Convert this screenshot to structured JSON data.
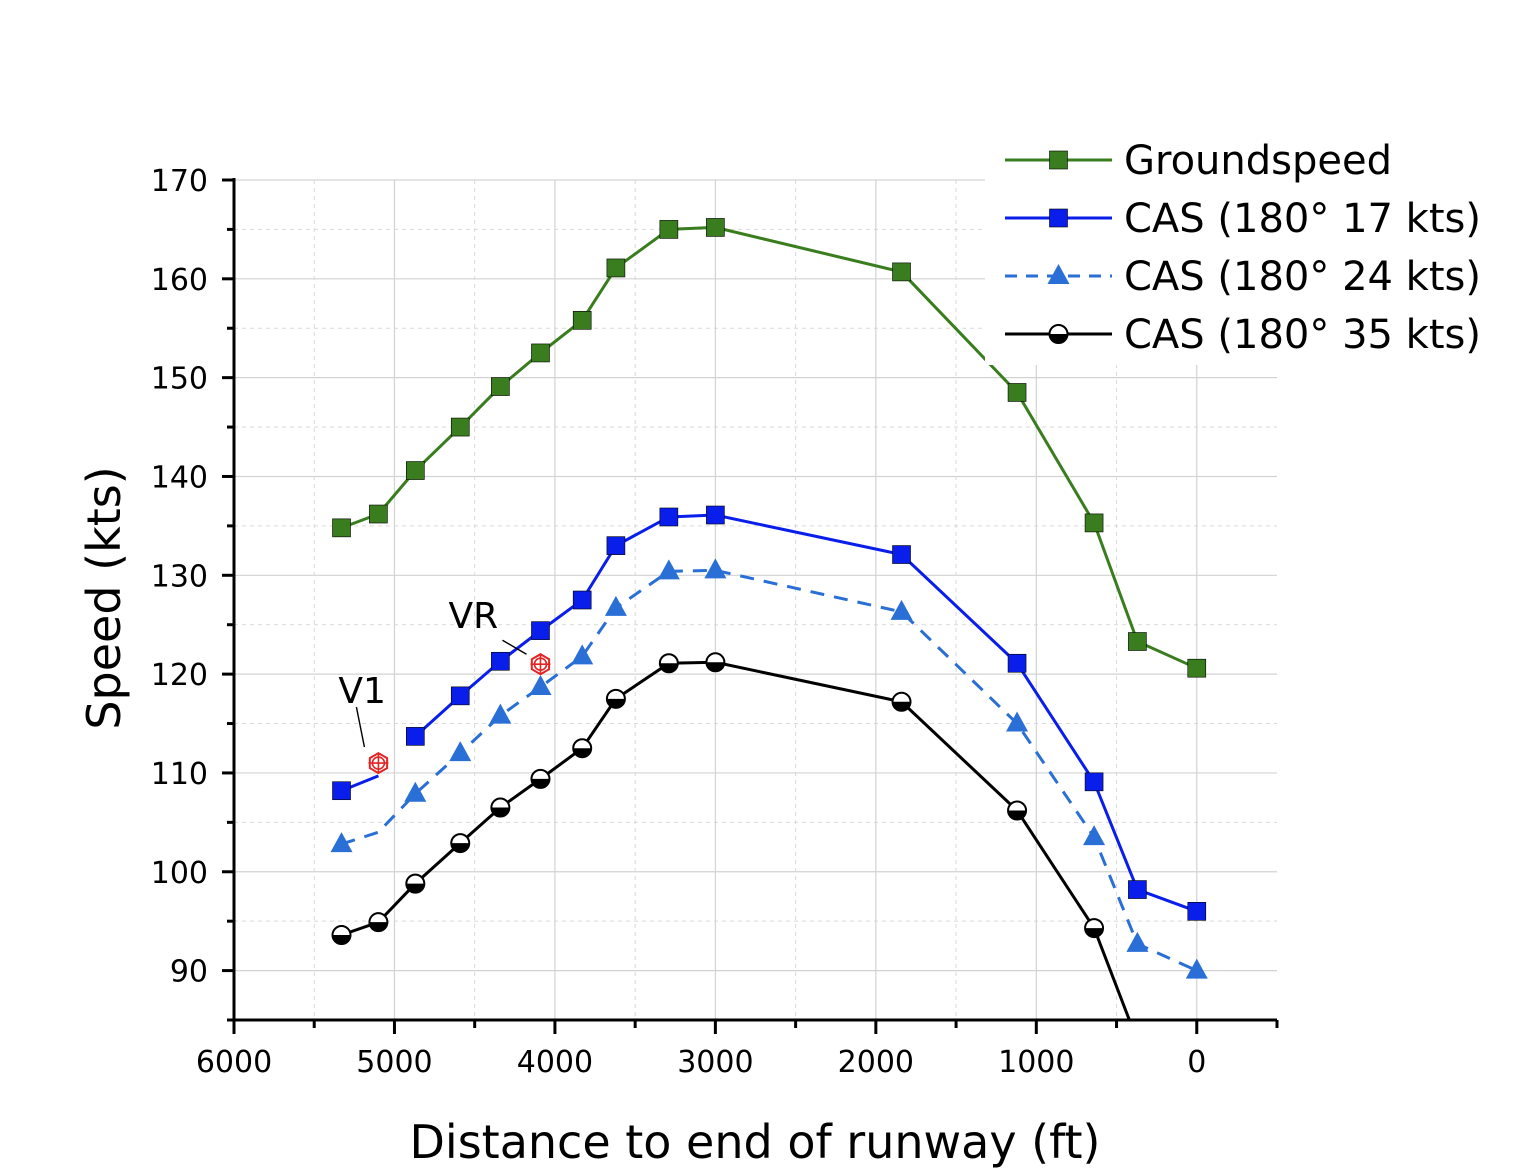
{
  "chart_data": {
    "type": "line",
    "xlabel": "Distance to end of runway (ft)",
    "ylabel": "Speed (kts)",
    "xlim": [
      6000,
      -500
    ],
    "ylim": [
      85,
      170
    ],
    "x_ticks": [
      6000,
      5000,
      4000,
      3000,
      2000,
      1000,
      0
    ],
    "y_ticks": [
      90,
      100,
      110,
      120,
      130,
      140,
      150,
      160,
      170
    ],
    "grid": true,
    "legend_position": "top-right",
    "series": [
      {
        "name": "Groundspeed",
        "color": "#3a7d1e",
        "marker": "square",
        "line_style": "solid",
        "x": [
          5330,
          5100,
          4870,
          4590,
          4340,
          4090,
          3830,
          3620,
          3290,
          3000,
          1840,
          1120,
          640,
          370,
          0
        ],
        "y": [
          134.8,
          136.2,
          140.6,
          145.0,
          149.1,
          152.5,
          155.8,
          161.1,
          165.0,
          165.2,
          160.7,
          148.5,
          135.3,
          123.3,
          120.6
        ]
      },
      {
        "name": "CAS (180° 17 kts)",
        "color": "#0a1eeb",
        "marker": "square",
        "line_style": "solid",
        "x": [
          5330,
          5100,
          4870,
          4590,
          4340,
          4090,
          3830,
          3620,
          3290,
          3000,
          1840,
          1120,
          640,
          370,
          0
        ],
        "y": [
          108.2,
          109.7,
          113.7,
          117.8,
          121.3,
          124.4,
          127.5,
          133.0,
          135.9,
          136.1,
          132.1,
          121.1,
          109.1,
          98.2,
          96.0
        ]
      },
      {
        "name": "CAS (180° 24 kts)",
        "color": "#2a6fd6",
        "marker": "triangle",
        "line_style": "dashed",
        "x": [
          5330,
          5100,
          4870,
          4590,
          4340,
          4090,
          3830,
          3620,
          3290,
          3000,
          1840,
          1120,
          640,
          370,
          0
        ],
        "y": [
          102.8,
          104.0,
          107.9,
          112.0,
          115.8,
          118.7,
          121.8,
          126.7,
          130.4,
          130.5,
          126.3,
          115.0,
          103.5,
          92.7,
          90.0
        ]
      },
      {
        "name": "CAS (180° 35 kts)",
        "color": "#000000",
        "marker": "half-circle",
        "line_style": "solid",
        "x": [
          5330,
          5100,
          4870,
          4590,
          4340,
          4090,
          3830,
          3620,
          3290,
          3000,
          1840,
          1120,
          640,
          420
        ],
        "y": [
          93.6,
          94.9,
          98.8,
          102.9,
          106.5,
          109.4,
          112.5,
          117.5,
          121.1,
          121.2,
          117.2,
          106.2,
          94.3,
          85.0
        ]
      }
    ],
    "annotations": [
      {
        "label": "V1",
        "x": 5100,
        "y": 111.0,
        "marker": "red-crosshair-hexagon",
        "color": "#e32424"
      },
      {
        "label": "VR",
        "x": 4090,
        "y": 121.0,
        "marker": "red-crosshair-hexagon",
        "color": "#e32424"
      }
    ]
  }
}
